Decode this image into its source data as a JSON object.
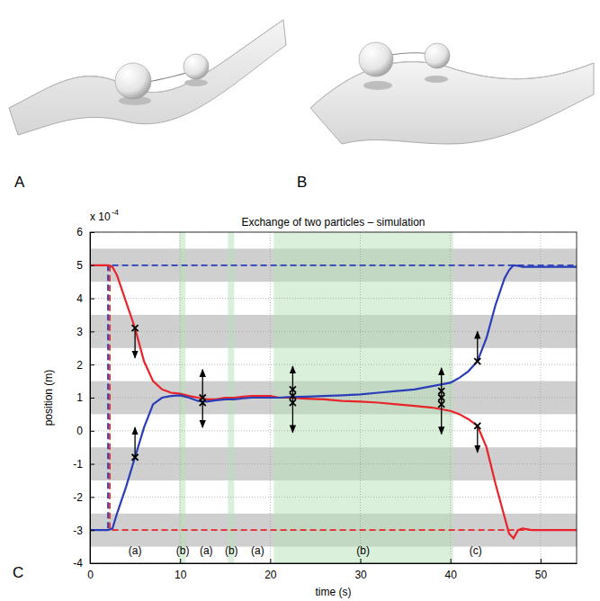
{
  "figure": {
    "panel_labels": [
      "A",
      "B",
      "C"
    ]
  },
  "chart_data": {
    "type": "line",
    "title": "Exchange of two particles – simulation",
    "x_label": "time (s)",
    "y_label": "position (m)",
    "y_multiplier": {
      "base": "x 10",
      "exponent": "-4"
    },
    "xlim": [
      0,
      54
    ],
    "ylim": [
      -4,
      6
    ],
    "xticks": [
      0,
      10,
      20,
      30,
      40,
      50
    ],
    "yticks": [
      -4,
      -3,
      -2,
      -1,
      0,
      1,
      2,
      3,
      4,
      5,
      6
    ],
    "grid": true,
    "y_bands": [
      [
        4.5,
        5.5
      ],
      [
        2.5,
        3.5
      ],
      [
        0.5,
        1.5
      ],
      [
        -1.5,
        -0.5
      ],
      [
        -3.5,
        -2.5
      ]
    ],
    "x_bands": [
      [
        9.9,
        10.6
      ],
      [
        15.3,
        16.0
      ],
      [
        20.4,
        40.3
      ]
    ],
    "series": [
      {
        "color": "#2a3db8",
        "line_style": "dashed",
        "x": [
          0,
          2.0,
          2.0,
          54
        ],
        "values": [
          -3,
          -3,
          5,
          5
        ]
      },
      {
        "color": "#e8232a",
        "line_style": "dashed",
        "x": [
          0,
          2.2,
          2.2,
          54
        ],
        "values": [
          5,
          5,
          -3,
          -3
        ]
      },
      {
        "color": "#e8232a",
        "line_style": "solid",
        "x": [
          0,
          1,
          2,
          2.5,
          3,
          4,
          5,
          6,
          7,
          8,
          9,
          10,
          11,
          12,
          13,
          14,
          15,
          16,
          17,
          18,
          19,
          20,
          21,
          22,
          24,
          26,
          28,
          30,
          32,
          34,
          36,
          38,
          40,
          41,
          42,
          43,
          44,
          45,
          46,
          46.5,
          47,
          47.5,
          48,
          49,
          50,
          52,
          54
        ],
        "values": [
          5,
          5,
          5,
          4.95,
          4.7,
          3.9,
          3.1,
          2.1,
          1.5,
          1.25,
          1.15,
          1.12,
          1.05,
          1.0,
          0.95,
          0.95,
          1.0,
          1.0,
          1.03,
          1.05,
          1.05,
          1.05,
          1.0,
          1.0,
          0.97,
          0.95,
          0.9,
          0.88,
          0.85,
          0.8,
          0.75,
          0.7,
          0.6,
          0.5,
          0.35,
          0.15,
          -0.5,
          -1.6,
          -2.6,
          -3.1,
          -3.25,
          -3.0,
          -2.95,
          -3.0,
          -3.0,
          -3.0,
          -3.0
        ]
      },
      {
        "color": "#2a3db8",
        "line_style": "solid",
        "x": [
          0,
          1,
          2,
          2.5,
          3,
          4,
          5,
          6,
          7,
          8,
          9,
          10,
          11,
          12,
          13,
          14,
          15,
          16,
          17,
          18,
          19,
          20,
          21,
          22,
          24,
          26,
          28,
          30,
          32,
          34,
          36,
          38,
          40,
          41,
          42,
          43,
          44,
          45,
          46,
          46.5,
          47,
          47.5,
          48,
          49,
          50,
          52,
          54
        ],
        "values": [
          -3,
          -3,
          -3,
          -2.95,
          -2.5,
          -1.7,
          -0.8,
          0.1,
          0.8,
          1.0,
          1.05,
          1.07,
          1.0,
          0.9,
          0.88,
          0.92,
          0.95,
          0.95,
          0.98,
          1.0,
          1.0,
          1.0,
          1.0,
          1.02,
          1.03,
          1.05,
          1.07,
          1.1,
          1.15,
          1.2,
          1.25,
          1.35,
          1.45,
          1.6,
          1.8,
          2.1,
          2.8,
          3.8,
          4.6,
          4.85,
          5.0,
          4.98,
          4.95,
          4.95,
          4.95,
          4.95,
          4.95
        ]
      }
    ],
    "markers": [
      {
        "x": 5,
        "y": 3.1
      },
      {
        "x": 5,
        "y": -0.8
      },
      {
        "x": 12.5,
        "y": 1.0
      },
      {
        "x": 12.5,
        "y": 0.85
      },
      {
        "x": 22.5,
        "y": 1.25
      },
      {
        "x": 22.5,
        "y": 1.05
      },
      {
        "x": 22.5,
        "y": 0.85
      },
      {
        "x": 39,
        "y": 1.2
      },
      {
        "x": 39,
        "y": 1.0
      },
      {
        "x": 39,
        "y": 0.8
      },
      {
        "x": 43,
        "y": 2.1
      },
      {
        "x": 43,
        "y": 0.15
      }
    ],
    "arrows": [
      {
        "x": 5,
        "y1": 3.1,
        "y2": 2.2
      },
      {
        "x": 5,
        "y1": -0.8,
        "y2": 0.1
      },
      {
        "x": 12.5,
        "y1": 0.95,
        "y2": 1.85
      },
      {
        "x": 12.5,
        "y1": 0.9,
        "y2": 0.1
      },
      {
        "x": 22.5,
        "y1": 1.05,
        "y2": 1.95
      },
      {
        "x": 22.5,
        "y1": 1.05,
        "y2": -0.05
      },
      {
        "x": 39,
        "y1": 1.0,
        "y2": 1.9
      },
      {
        "x": 39,
        "y1": 1.0,
        "y2": -0.1
      },
      {
        "x": 43,
        "y1": 2.1,
        "y2": 3.0
      },
      {
        "x": 43,
        "y1": 0.15,
        "y2": -0.65
      }
    ],
    "annotations": [
      {
        "x": 5,
        "y": -3.65,
        "text": "(a)"
      },
      {
        "x": 10.3,
        "y": -3.65,
        "text": "(b)"
      },
      {
        "x": 12.9,
        "y": -3.65,
        "text": "(a)"
      },
      {
        "x": 15.7,
        "y": -3.65,
        "text": "(b)"
      },
      {
        "x": 18.6,
        "y": -3.65,
        "text": "(a)"
      },
      {
        "x": 30.3,
        "y": -3.65,
        "text": "(b)"
      },
      {
        "x": 42.8,
        "y": -3.65,
        "text": "(c)"
      }
    ]
  }
}
